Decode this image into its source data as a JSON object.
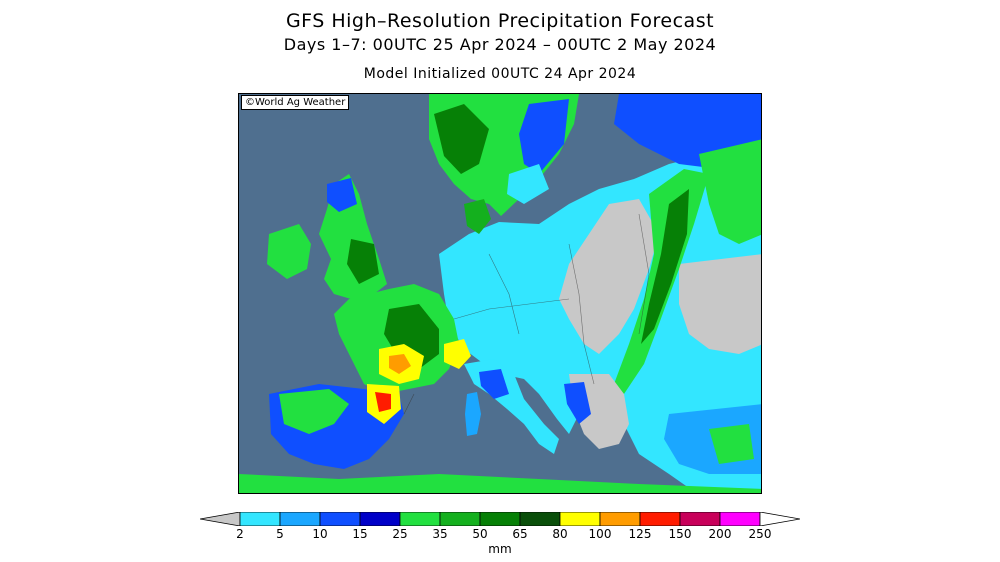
{
  "header": {
    "title": "GFS High–Resolution Precipitation Forecast",
    "subtitle": "Days 1–7: 00UTC 25 Apr 2024 – 00UTC 2 May 2024",
    "init": "Model Initialized 00UTC 24 Apr 2024"
  },
  "map": {
    "watermark": "©World Ag Weather",
    "ocean_color": "#4f6f8f",
    "region": "Europe"
  },
  "legend": {
    "ticks": [
      "2",
      "5",
      "10",
      "15",
      "25",
      "35",
      "50",
      "65",
      "80",
      "100",
      "125",
      "150",
      "200",
      "250"
    ],
    "colors": [
      "#33e6ff",
      "#1ba7ff",
      "#0f4fff",
      "#0000c8",
      "#22e040",
      "#14b01e",
      "#068006",
      "#0a4f0a",
      "#ffff00",
      "#ff9c00",
      "#ff1c00",
      "#c8005a",
      "#ff00ff",
      "#9b4fcf"
    ],
    "low_color": "#c8c8c8",
    "high_color": "#ffffff",
    "units": "mm"
  }
}
